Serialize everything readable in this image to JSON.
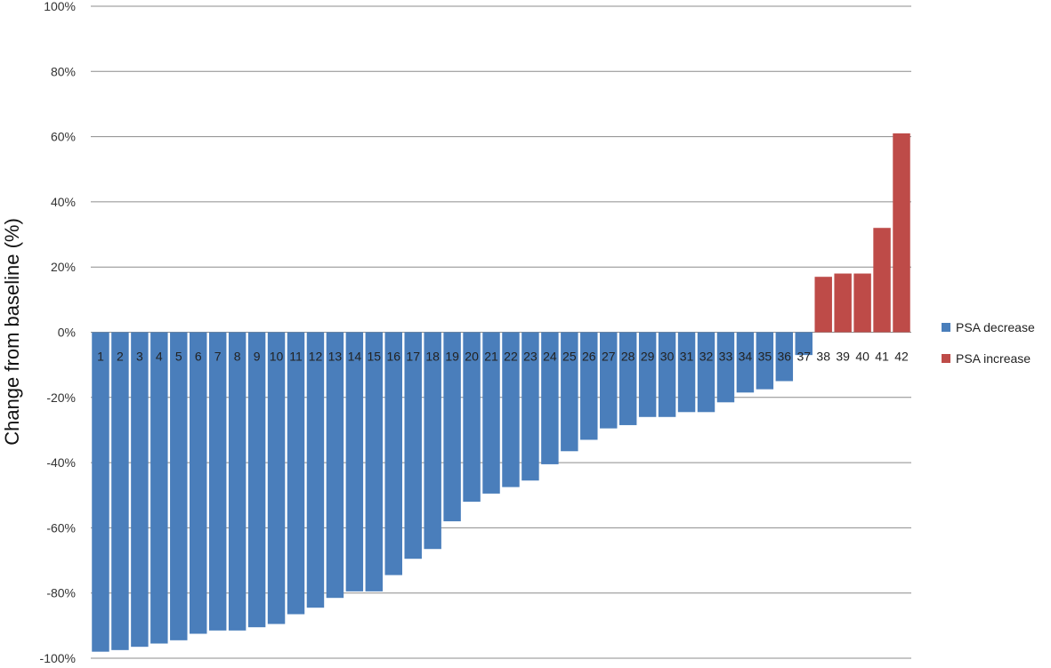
{
  "chart_data": {
    "type": "bar",
    "ylabel": "Change from baseline (%)",
    "xlabel": "",
    "ylim": [
      -100,
      100
    ],
    "yticks": [
      {
        "value": 100,
        "label": "100%"
      },
      {
        "value": 80,
        "label": "80%"
      },
      {
        "value": 60,
        "label": "60%"
      },
      {
        "value": 40,
        "label": "40%"
      },
      {
        "value": 20,
        "label": "20%"
      },
      {
        "value": 0,
        "label": "0%"
      },
      {
        "value": -20,
        "label": "-20%"
      },
      {
        "value": -40,
        "label": "-40%"
      },
      {
        "value": -60,
        "label": "-60%"
      },
      {
        "value": -80,
        "label": "-80%"
      },
      {
        "value": -100,
        "label": "-100%"
      }
    ],
    "grid": true,
    "legend_position": "right",
    "categories": [
      "1",
      "2",
      "3",
      "4",
      "5",
      "6",
      "7",
      "8",
      "9",
      "10",
      "11",
      "12",
      "13",
      "14",
      "15",
      "16",
      "17",
      "18",
      "19",
      "20",
      "21",
      "22",
      "23",
      "24",
      "25",
      "26",
      "27",
      "28",
      "29",
      "30",
      "31",
      "32",
      "33",
      "34",
      "35",
      "36",
      "37",
      "38",
      "39",
      "40",
      "41",
      "42"
    ],
    "values": [
      -98,
      -97.5,
      -96.5,
      -95.5,
      -94.5,
      -92.5,
      -91.5,
      -91.5,
      -90.5,
      -89.5,
      -86.5,
      -84.5,
      -81.5,
      -79.5,
      -79.5,
      -74.5,
      -69.5,
      -66.5,
      -58,
      -52,
      -49.5,
      -47.5,
      -45.5,
      -40.5,
      -36.5,
      -33,
      -29.5,
      -28.5,
      -26,
      -26,
      -24.5,
      -24.5,
      -21.5,
      -18.5,
      -17.5,
      -15,
      -7,
      17,
      18,
      18,
      32,
      61
    ],
    "series": [
      {
        "name": "PSA decrease",
        "color": "#4A7EBB"
      },
      {
        "name": "PSA increase",
        "color": "#BE4B48"
      }
    ]
  }
}
